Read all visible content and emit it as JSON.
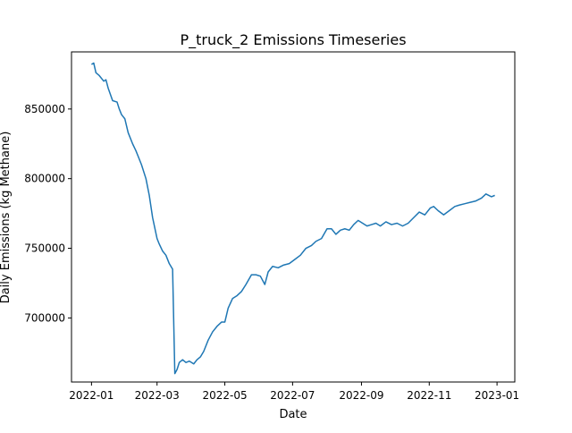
{
  "chart_data": {
    "type": "line",
    "title": "P_truck_2 Emissions Timeseries",
    "xlabel": "Date",
    "ylabel": "Daily Emissions (kg Methane)",
    "x_ticks": [
      "2022-01",
      "2022-03",
      "2022-05",
      "2022-07",
      "2022-09",
      "2022-11",
      "2023-01"
    ],
    "y_ticks": [
      700000,
      750000,
      800000,
      850000
    ],
    "y_tick_labels": [
      "700000",
      "750000",
      "800000",
      "850000"
    ],
    "xlim": [
      "2021-12-14",
      "2023-01-17"
    ],
    "ylim": [
      654000,
      891000
    ],
    "grid": false,
    "line_color": "#1f77b4",
    "series": [
      {
        "x": [
          "2022-01-01",
          "2022-01-03",
          "2022-01-05",
          "2022-01-08",
          "2022-01-12",
          "2022-01-14",
          "2022-01-16",
          "2022-01-20",
          "2022-01-24",
          "2022-01-26",
          "2022-01-28",
          "2022-01-31",
          "2022-02-03",
          "2022-02-07",
          "2022-02-10",
          "2022-02-12",
          "2022-02-15",
          "2022-02-19",
          "2022-02-22",
          "2022-02-25",
          "2022-03-01",
          "2022-03-03",
          "2022-03-06",
          "2022-03-09",
          "2022-03-12",
          "2022-03-15",
          "2022-03-17",
          "2022-03-19",
          "2022-03-21",
          "2022-03-24",
          "2022-03-27",
          "2022-03-30",
          "2022-04-03",
          "2022-04-06",
          "2022-04-09",
          "2022-04-12",
          "2022-04-16",
          "2022-04-20",
          "2022-04-24",
          "2022-04-28",
          "2022-05-01",
          "2022-05-04",
          "2022-05-08",
          "2022-05-12",
          "2022-05-16",
          "2022-05-20",
          "2022-05-25",
          "2022-05-29",
          "2022-06-02",
          "2022-06-06",
          "2022-06-09",
          "2022-06-13",
          "2022-06-18",
          "2022-06-23",
          "2022-06-28",
          "2022-07-03",
          "2022-07-08",
          "2022-07-13",
          "2022-07-18",
          "2022-07-22",
          "2022-07-27",
          "2022-08-01",
          "2022-08-05",
          "2022-08-09",
          "2022-08-13",
          "2022-08-17",
          "2022-08-21",
          "2022-08-25",
          "2022-08-29",
          "2022-09-02",
          "2022-09-06",
          "2022-09-10",
          "2022-09-14",
          "2022-09-18",
          "2022-09-23",
          "2022-09-28",
          "2022-10-03",
          "2022-10-08",
          "2022-10-13",
          "2022-10-18",
          "2022-10-23",
          "2022-10-28",
          "2022-11-02",
          "2022-11-05",
          "2022-11-09",
          "2022-11-14",
          "2022-11-19",
          "2022-11-24",
          "2022-11-28",
          "2022-12-03",
          "2022-12-08",
          "2022-12-13",
          "2022-12-18",
          "2022-12-22",
          "2022-12-27",
          "2022-12-30"
        ],
        "y": [
          882000,
          883000,
          876000,
          874000,
          870000,
          871000,
          865000,
          856000,
          855000,
          850000,
          846000,
          843000,
          833000,
          825000,
          820000,
          816000,
          810000,
          800000,
          788000,
          772000,
          757000,
          753000,
          748000,
          745000,
          739000,
          735000,
          660000,
          663000,
          668000,
          670000,
          668000,
          669000,
          667000,
          670000,
          672000,
          676000,
          684000,
          690000,
          694000,
          697000,
          697000,
          707000,
          714000,
          716000,
          719000,
          724000,
          731000,
          731000,
          730000,
          724000,
          733000,
          737000,
          736000,
          738000,
          739000,
          742000,
          745000,
          750000,
          752000,
          755000,
          757000,
          764000,
          764000,
          760000,
          763000,
          764000,
          763000,
          767000,
          770000,
          768000,
          766000,
          767000,
          768000,
          766000,
          769000,
          767000,
          768000,
          766000,
          768000,
          772000,
          776000,
          774000,
          779000,
          780000,
          777000,
          774000,
          777000,
          780000,
          781000,
          782000,
          783000,
          784000,
          786000,
          789000,
          787000,
          788000
        ]
      }
    ]
  }
}
